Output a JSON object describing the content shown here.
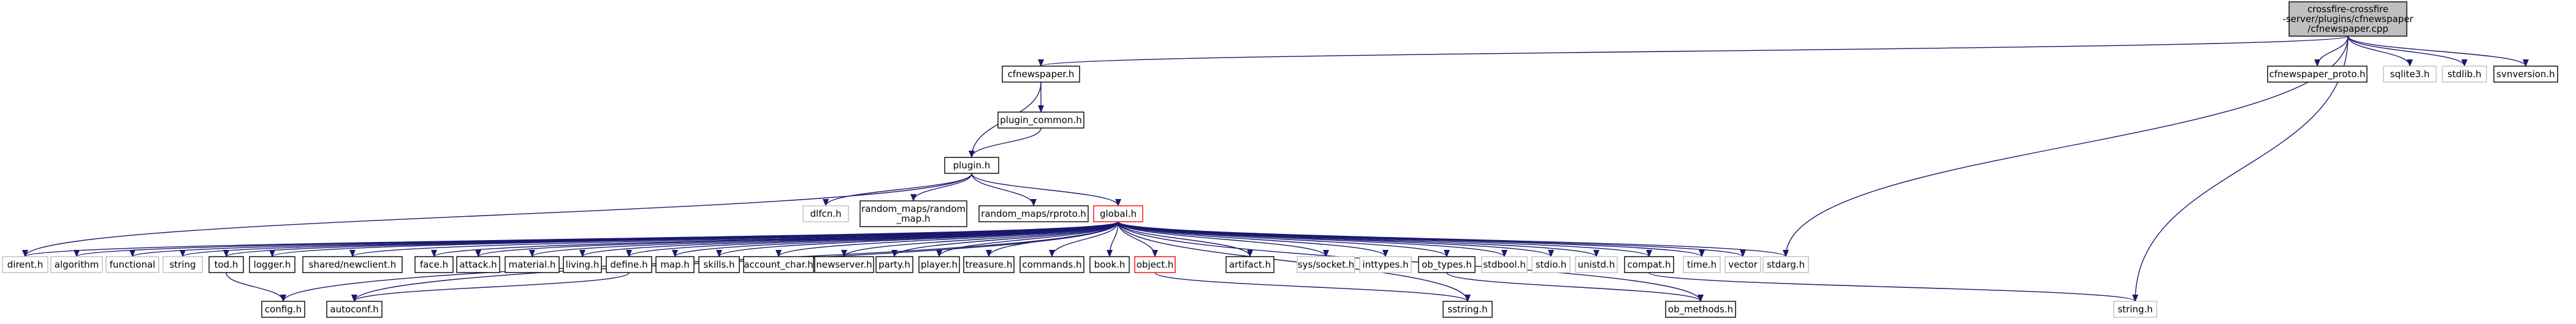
{
  "graph": {
    "nodes": [
      {
        "id": "root",
        "lines": [
          "crossfire-crossfire",
          "-server/plugins/cfnewspaper",
          "/cfnewspaper.cpp"
        ],
        "style": "root"
      },
      {
        "id": "cfnewspaper_h",
        "lines": [
          "cfnewspaper.h"
        ],
        "style": "normal"
      },
      {
        "id": "cfnewspaper_proto_h",
        "lines": [
          "cfnewspaper_proto.h"
        ],
        "style": "normal"
      },
      {
        "id": "sqlite3_h",
        "lines": [
          "sqlite3.h"
        ],
        "style": "gray"
      },
      {
        "id": "stdlib_h",
        "lines": [
          "stdlib.h"
        ],
        "style": "gray"
      },
      {
        "id": "svnversion_h",
        "lines": [
          "svnversion.h"
        ],
        "style": "normal"
      },
      {
        "id": "plugin_common_h",
        "lines": [
          "plugin_common.h"
        ],
        "style": "normal"
      },
      {
        "id": "plugin_h",
        "lines": [
          "plugin.h"
        ],
        "style": "normal"
      },
      {
        "id": "dlfcn_h",
        "lines": [
          "dlfcn.h"
        ],
        "style": "gray"
      },
      {
        "id": "random_map_h",
        "lines": [
          "random_maps/random",
          "_map.h"
        ],
        "style": "normal"
      },
      {
        "id": "random_proto_h",
        "lines": [
          "random_maps/rproto.h"
        ],
        "style": "normal"
      },
      {
        "id": "global_h",
        "lines": [
          "global.h"
        ],
        "style": "red"
      },
      {
        "id": "dirent_h",
        "lines": [
          "dirent.h"
        ],
        "style": "gray"
      },
      {
        "id": "algorithm",
        "lines": [
          "algorithm"
        ],
        "style": "gray"
      },
      {
        "id": "functional",
        "lines": [
          "functional"
        ],
        "style": "gray"
      },
      {
        "id": "string",
        "lines": [
          "string"
        ],
        "style": "gray"
      },
      {
        "id": "tod_h",
        "lines": [
          "tod.h"
        ],
        "style": "normal"
      },
      {
        "id": "logger_h",
        "lines": [
          "logger.h"
        ],
        "style": "normal"
      },
      {
        "id": "shared_newclient_h",
        "lines": [
          "shared/newclient.h"
        ],
        "style": "normal"
      },
      {
        "id": "face_h",
        "lines": [
          "face.h"
        ],
        "style": "normal"
      },
      {
        "id": "attack_h",
        "lines": [
          "attack.h"
        ],
        "style": "normal"
      },
      {
        "id": "material_h",
        "lines": [
          "material.h"
        ],
        "style": "normal"
      },
      {
        "id": "living_h",
        "lines": [
          "living.h"
        ],
        "style": "normal"
      },
      {
        "id": "define_h",
        "lines": [
          "define.h"
        ],
        "style": "normal"
      },
      {
        "id": "map_h",
        "lines": [
          "map.h"
        ],
        "style": "normal"
      },
      {
        "id": "skills_h",
        "lines": [
          "skills.h"
        ],
        "style": "normal"
      },
      {
        "id": "account_char_h",
        "lines": [
          "account_char.h"
        ],
        "style": "normal"
      },
      {
        "id": "newserver_h",
        "lines": [
          "newserver.h"
        ],
        "style": "normal"
      },
      {
        "id": "party_h",
        "lines": [
          "party.h"
        ],
        "style": "normal"
      },
      {
        "id": "player_h",
        "lines": [
          "player.h"
        ],
        "style": "normal"
      },
      {
        "id": "treasure_h",
        "lines": [
          "treasure.h"
        ],
        "style": "normal"
      },
      {
        "id": "commands_h",
        "lines": [
          "commands.h"
        ],
        "style": "normal"
      },
      {
        "id": "book_h",
        "lines": [
          "book.h"
        ],
        "style": "normal"
      },
      {
        "id": "object_h",
        "lines": [
          "object.h"
        ],
        "style": "red"
      },
      {
        "id": "artifact_h",
        "lines": [
          "artifact.h"
        ],
        "style": "normal"
      },
      {
        "id": "sys_socket_h",
        "lines": [
          "sys/socket.h"
        ],
        "style": "gray"
      },
      {
        "id": "inttypes_h",
        "lines": [
          "inttypes.h"
        ],
        "style": "gray"
      },
      {
        "id": "ob_types_h",
        "lines": [
          "ob_types.h"
        ],
        "style": "normal"
      },
      {
        "id": "stdbool_h",
        "lines": [
          "stdbool.h"
        ],
        "style": "gray"
      },
      {
        "id": "stdio_h",
        "lines": [
          "stdio.h"
        ],
        "style": "gray"
      },
      {
        "id": "unistd_h",
        "lines": [
          "unistd.h"
        ],
        "style": "gray"
      },
      {
        "id": "compat_h",
        "lines": [
          "compat.h"
        ],
        "style": "normal"
      },
      {
        "id": "time_h",
        "lines": [
          "time.h"
        ],
        "style": "gray"
      },
      {
        "id": "vector",
        "lines": [
          "vector"
        ],
        "style": "gray"
      },
      {
        "id": "stdarg_h",
        "lines": [
          "stdarg.h"
        ],
        "style": "gray"
      },
      {
        "id": "config_h",
        "lines": [
          "config.h"
        ],
        "style": "normal"
      },
      {
        "id": "autoconf_h",
        "lines": [
          "autoconf.h"
        ],
        "style": "normal"
      },
      {
        "id": "ob_methods_h",
        "lines": [
          "ob_methods.h"
        ],
        "style": "normal"
      },
      {
        "id": "sstring_h",
        "lines": [
          "sstring.h"
        ],
        "style": "normal"
      },
      {
        "id": "string_h",
        "lines": [
          "string.h"
        ],
        "style": "gray"
      }
    ],
    "edges": [
      [
        "root",
        "cfnewspaper_h"
      ],
      [
        "root",
        "cfnewspaper_proto_h"
      ],
      [
        "root",
        "sqlite3_h"
      ],
      [
        "root",
        "stdlib_h"
      ],
      [
        "root",
        "svnversion_h"
      ],
      [
        "root",
        "stdarg_h"
      ],
      [
        "root",
        "string_h"
      ],
      [
        "cfnewspaper_h",
        "plugin_common_h"
      ],
      [
        "cfnewspaper_h",
        "plugin_h"
      ],
      [
        "plugin_common_h",
        "plugin_h"
      ],
      [
        "plugin_h",
        "dlfcn_h"
      ],
      [
        "plugin_h",
        "random_map_h"
      ],
      [
        "plugin_h",
        "random_proto_h"
      ],
      [
        "plugin_h",
        "global_h"
      ],
      [
        "plugin_h",
        "dirent_h"
      ],
      [
        "global_h",
        "dirent_h"
      ],
      [
        "global_h",
        "algorithm"
      ],
      [
        "global_h",
        "functional"
      ],
      [
        "global_h",
        "string"
      ],
      [
        "global_h",
        "tod_h"
      ],
      [
        "global_h",
        "config_h"
      ],
      [
        "global_h",
        "autoconf_h"
      ],
      [
        "global_h",
        "logger_h"
      ],
      [
        "global_h",
        "shared_newclient_h"
      ],
      [
        "global_h",
        "face_h"
      ],
      [
        "global_h",
        "attack_h"
      ],
      [
        "global_h",
        "material_h"
      ],
      [
        "global_h",
        "living_h"
      ],
      [
        "global_h",
        "define_h"
      ],
      [
        "global_h",
        "map_h"
      ],
      [
        "global_h",
        "skills_h"
      ],
      [
        "global_h",
        "account_char_h"
      ],
      [
        "global_h",
        "newserver_h"
      ],
      [
        "global_h",
        "party_h"
      ],
      [
        "global_h",
        "player_h"
      ],
      [
        "global_h",
        "treasure_h"
      ],
      [
        "global_h",
        "commands_h"
      ],
      [
        "global_h",
        "book_h"
      ],
      [
        "global_h",
        "object_h"
      ],
      [
        "global_h",
        "sstring_h"
      ],
      [
        "global_h",
        "artifact_h"
      ],
      [
        "global_h",
        "sys_socket_h"
      ],
      [
        "global_h",
        "inttypes_h"
      ],
      [
        "global_h",
        "ob_types_h"
      ],
      [
        "global_h",
        "ob_methods_h"
      ],
      [
        "global_h",
        "stdbool_h"
      ],
      [
        "global_h",
        "stdio_h"
      ],
      [
        "global_h",
        "unistd_h"
      ],
      [
        "global_h",
        "compat_h"
      ],
      [
        "global_h",
        "time_h"
      ],
      [
        "global_h",
        "vector"
      ],
      [
        "global_h",
        "stdarg_h"
      ],
      [
        "tod_h",
        "config_h"
      ],
      [
        "define_h",
        "autoconf_h"
      ],
      [
        "object_h",
        "sstring_h"
      ],
      [
        "ob_types_h",
        "ob_methods_h"
      ],
      [
        "compat_h",
        "string_h"
      ]
    ]
  }
}
